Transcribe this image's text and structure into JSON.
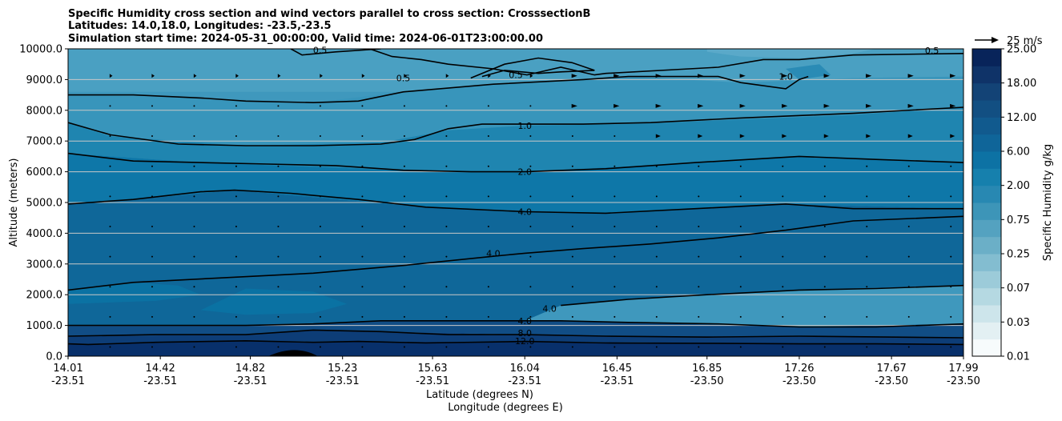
{
  "chart_data": {
    "type": "contour",
    "title_lines": [
      "Specific Humidity cross section and wind vectors parallel to cross section: CrosssectionB",
      "Latitudes: 14.0,18.0, Longitudes: -23.5,-23.5",
      "Simulation start time: 2024-05-31_00:00:00, Valid time: 2024-06-01T23:00:00.00"
    ],
    "ylabel": "Altitude (meters)",
    "xlabel_lat": "Latitude (degrees N)",
    "xlabel_lon": "Longitude (degrees E)",
    "ylim": [
      0,
      10000
    ],
    "xlim": [
      14.01,
      17.99
    ],
    "yticks": [
      "0.0",
      "1000.0",
      "2000.0",
      "3000.0",
      "4000.0",
      "5000.0",
      "6000.0",
      "7000.0",
      "8000.0",
      "9000.0",
      "10000.0"
    ],
    "ytick_values": [
      0,
      1000,
      2000,
      3000,
      4000,
      5000,
      6000,
      7000,
      8000,
      9000,
      10000
    ],
    "xtick_lat": [
      "14.01",
      "14.42",
      "14.82",
      "15.23",
      "15.63",
      "16.04",
      "16.45",
      "16.85",
      "17.26",
      "17.67",
      "17.99"
    ],
    "xtick_lon": [
      "-23.51",
      "-23.51",
      "-23.51",
      "-23.51",
      "-23.51",
      "-23.51",
      "-23.51",
      "-23.50",
      "-23.50",
      "-23.50",
      "-23.50"
    ],
    "xtick_values": [
      14.01,
      14.42,
      14.82,
      15.23,
      15.63,
      16.04,
      16.45,
      16.85,
      17.26,
      17.67,
      17.99
    ],
    "grid": "horizontal",
    "colorbar": {
      "label": "Specific Humidity g/kg",
      "tick_labels": [
        "0.01",
        "0.03",
        "0.07",
        "0.25",
        "0.75",
        "2.00",
        "6.00",
        "12.00",
        "18.00",
        "25.00"
      ],
      "levels_count": 18
    },
    "quiver_key": {
      "label": "25 m/s",
      "speed": 25
    },
    "contour_levels": [
      {
        "label": "0.5",
        "points": [
          [
            15.0,
            10000
          ],
          [
            15.05,
            9800
          ],
          [
            15.2,
            9900
          ],
          [
            15.4,
            10000
          ]
        ]
      },
      {
        "label": "0.5",
        "points": [
          [
            15.35,
            10000
          ],
          [
            15.45,
            9750
          ],
          [
            15.58,
            9650
          ],
          [
            15.7,
            9500
          ],
          [
            15.9,
            9350
          ],
          [
            16.05,
            9150
          ],
          [
            16.2,
            9400
          ],
          [
            16.35,
            9150
          ],
          [
            16.4,
            9200
          ],
          [
            16.9,
            9400
          ],
          [
            17.1,
            9650
          ],
          [
            17.26,
            9650
          ],
          [
            17.5,
            9800
          ],
          [
            17.99,
            9850
          ]
        ]
      },
      {
        "label": "0.5",
        "points": [
          [
            15.8,
            9050
          ],
          [
            15.95,
            9500
          ],
          [
            16.1,
            9700
          ],
          [
            16.25,
            9550
          ],
          [
            16.35,
            9300
          ],
          [
            16.2,
            9250
          ],
          [
            16.1,
            9200
          ],
          [
            15.95,
            9300
          ],
          [
            15.85,
            9100
          ]
        ]
      },
      {
        "label": "1.0",
        "points": [
          [
            14.01,
            8500
          ],
          [
            14.3,
            8500
          ],
          [
            14.6,
            8400
          ],
          [
            14.8,
            8300
          ],
          [
            15.1,
            8250
          ],
          [
            15.3,
            8300
          ],
          [
            15.5,
            8600
          ],
          [
            15.9,
            8850
          ],
          [
            16.3,
            9000
          ],
          [
            16.5,
            9100
          ],
          [
            16.9,
            9100
          ],
          [
            17.0,
            8900
          ],
          [
            17.2,
            8700
          ],
          [
            17.26,
            9000
          ],
          [
            17.3,
            9100
          ]
        ]
      },
      {
        "label": "1.0",
        "points": [
          [
            14.01,
            7600
          ],
          [
            14.2,
            7200
          ],
          [
            14.5,
            6900
          ],
          [
            14.8,
            6850
          ],
          [
            15.1,
            6850
          ],
          [
            15.4,
            6900
          ],
          [
            15.55,
            7050
          ],
          [
            15.7,
            7400
          ],
          [
            15.85,
            7550
          ],
          [
            16.04,
            7550
          ],
          [
            16.3,
            7550
          ],
          [
            16.6,
            7600
          ],
          [
            17.0,
            7750
          ],
          [
            17.5,
            7900
          ],
          [
            17.99,
            8100
          ]
        ]
      },
      {
        "label": "2.0",
        "points": [
          [
            14.01,
            6600
          ],
          [
            14.3,
            6350
          ],
          [
            14.6,
            6300
          ],
          [
            14.9,
            6250
          ],
          [
            15.2,
            6200
          ],
          [
            15.5,
            6050
          ],
          [
            15.8,
            6000
          ],
          [
            16.04,
            6000
          ],
          [
            16.4,
            6100
          ],
          [
            16.8,
            6300
          ],
          [
            17.26,
            6500
          ],
          [
            17.6,
            6400
          ],
          [
            17.99,
            6300
          ]
        ]
      },
      {
        "label": "4.0",
        "points": [
          [
            14.01,
            4950
          ],
          [
            14.3,
            5100
          ],
          [
            14.6,
            5350
          ],
          [
            14.75,
            5400
          ],
          [
            15.0,
            5300
          ],
          [
            15.3,
            5100
          ],
          [
            15.6,
            4850
          ],
          [
            16.04,
            4700
          ],
          [
            16.4,
            4650
          ],
          [
            16.8,
            4800
          ],
          [
            17.2,
            4950
          ],
          [
            17.5,
            4800
          ],
          [
            17.99,
            4800
          ]
        ]
      },
      {
        "label": "4.0",
        "points": [
          [
            14.01,
            2150
          ],
          [
            14.3,
            2400
          ],
          [
            14.7,
            2550
          ],
          [
            15.1,
            2700
          ],
          [
            15.5,
            2950
          ],
          [
            15.9,
            3250
          ],
          [
            16.04,
            3350
          ],
          [
            16.3,
            3500
          ],
          [
            16.6,
            3650
          ],
          [
            16.9,
            3850
          ],
          [
            17.2,
            4100
          ],
          [
            17.5,
            4400
          ],
          [
            17.99,
            4550
          ]
        ]
      },
      {
        "label": "4.0",
        "points": [
          [
            16.2,
            1650
          ],
          [
            16.5,
            1850
          ],
          [
            16.85,
            2000
          ],
          [
            17.26,
            2150
          ],
          [
            17.6,
            2200
          ],
          [
            17.99,
            2300
          ]
        ]
      },
      {
        "label": "4.0",
        "points": [
          [
            14.01,
            1000
          ],
          [
            14.4,
            1000
          ],
          [
            14.8,
            1000
          ],
          [
            15.1,
            1050
          ],
          [
            15.4,
            1150
          ],
          [
            15.8,
            1150
          ],
          [
            16.04,
            1150
          ],
          [
            16.2,
            1150
          ],
          [
            16.5,
            1100
          ],
          [
            16.9,
            1050
          ],
          [
            17.26,
            950
          ],
          [
            17.6,
            950
          ],
          [
            17.99,
            1050
          ]
        ]
      },
      {
        "label": "8.0",
        "points": [
          [
            14.01,
            650
          ],
          [
            14.4,
            700
          ],
          [
            14.8,
            700
          ],
          [
            15.1,
            850
          ],
          [
            15.4,
            800
          ],
          [
            15.7,
            700
          ],
          [
            16.04,
            700
          ],
          [
            16.4,
            650
          ],
          [
            16.85,
            620
          ],
          [
            17.26,
            650
          ],
          [
            17.99,
            600
          ]
        ]
      },
      {
        "label": "12.0",
        "points": [
          [
            14.01,
            400
          ],
          [
            14.1,
            380
          ],
          [
            14.4,
            450
          ],
          [
            14.8,
            500
          ],
          [
            15.1,
            450
          ],
          [
            15.3,
            480
          ],
          [
            15.6,
            430
          ],
          [
            16.04,
            480
          ],
          [
            16.4,
            430
          ],
          [
            16.85,
            420
          ],
          [
            17.26,
            400
          ],
          [
            17.6,
            400
          ],
          [
            17.99,
            380
          ]
        ]
      }
    ],
    "contour_label_positions": [
      {
        "label": "0.5",
        "x": 15.13,
        "y": 9960
      },
      {
        "label": "0.5",
        "x": 15.5,
        "y": 9050
      },
      {
        "label": "0.5",
        "x": 16.0,
        "y": 9150
      },
      {
        "label": "0.5",
        "x": 17.85,
        "y": 9950
      },
      {
        "label": "1.0",
        "x": 16.04,
        "y": 7500
      },
      {
        "label": "1.0",
        "x": 17.2,
        "y": 9100
      },
      {
        "label": "2.0",
        "x": 16.04,
        "y": 6000
      },
      {
        "label": "4.0",
        "x": 16.04,
        "y": 4700
      },
      {
        "label": "4.0",
        "x": 15.9,
        "y": 3350
      },
      {
        "label": "4.0",
        "x": 16.15,
        "y": 1550
      },
      {
        "label": "4.0",
        "x": 16.04,
        "y": 1150
      },
      {
        "label": "8.0",
        "x": 16.04,
        "y": 750
      },
      {
        "label": "12.0",
        "x": 16.04,
        "y": 500
      }
    ],
    "terrain_bump": {
      "x_start": 14.9,
      "x_peak": 15.02,
      "x_end": 15.12,
      "peak_altitude": 200
    }
  }
}
